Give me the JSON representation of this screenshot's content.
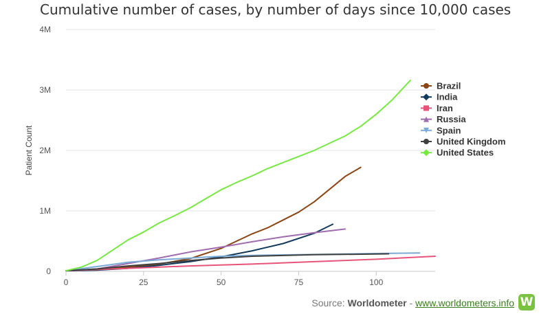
{
  "chart_data": {
    "type": "line",
    "title": "Cumulative number of cases, by number of days since 10,000 cases",
    "xlabel": "",
    "ylabel": "Patient Count",
    "xlim": [
      0,
      119
    ],
    "ylim": [
      0,
      4000000
    ],
    "x_ticks": [
      0,
      25,
      50,
      75,
      100
    ],
    "y_ticks": [
      0,
      1000000,
      2000000,
      3000000,
      4000000
    ],
    "x_tick_labels": [
      "0",
      "25",
      "50",
      "75",
      "100"
    ],
    "y_tick_labels": [
      "0",
      "1M",
      "2M",
      "3M",
      "4M"
    ],
    "grid": "horizontal",
    "legend": "right",
    "series": [
      {
        "name": "Brazil",
        "color": "#8b4513",
        "marker": "circle",
        "x": [
          0,
          10,
          20,
          30,
          40,
          50,
          55,
          60,
          65,
          70,
          75,
          80,
          85,
          90,
          95
        ],
        "y": [
          10000,
          30000,
          70000,
          120000,
          210000,
          380000,
          500000,
          620000,
          720000,
          850000,
          980000,
          1150000,
          1360000,
          1570000,
          1720000
        ]
      },
      {
        "name": "India",
        "color": "#123a5a",
        "marker": "diamond",
        "x": [
          0,
          10,
          20,
          30,
          40,
          50,
          60,
          70,
          80,
          86
        ],
        "y": [
          10000,
          20000,
          50000,
          100000,
          160000,
          240000,
          340000,
          460000,
          630000,
          780000
        ]
      },
      {
        "name": "Iran",
        "color": "#e8537a",
        "marker": "square",
        "x": [
          0,
          20,
          40,
          60,
          80,
          100,
          119
        ],
        "y": [
          10000,
          50000,
          90000,
          120000,
          160000,
          200000,
          250000
        ]
      },
      {
        "name": "Russia",
        "color": "#a06bb0",
        "marker": "triangle",
        "x": [
          0,
          10,
          20,
          30,
          40,
          50,
          60,
          70,
          80,
          90
        ],
        "y": [
          10000,
          40000,
          130000,
          220000,
          320000,
          400000,
          490000,
          570000,
          640000,
          700000
        ]
      },
      {
        "name": "Spain",
        "color": "#7aaad6",
        "marker": "triangle-down",
        "x": [
          0,
          10,
          20,
          30,
          40,
          50,
          60,
          80,
          100,
          114
        ],
        "y": [
          10000,
          80000,
          150000,
          190000,
          220000,
          250000,
          265000,
          280000,
          295000,
          305000
        ]
      },
      {
        "name": "United Kingdom",
        "color": "#404040",
        "marker": "circle",
        "x": [
          0,
          10,
          20,
          30,
          40,
          50,
          60,
          80,
          104
        ],
        "y": [
          10000,
          40000,
          90000,
          130000,
          180000,
          220000,
          250000,
          275000,
          290000
        ]
      },
      {
        "name": "United States",
        "color": "#77e842",
        "marker": "diamond",
        "x": [
          0,
          5,
          10,
          15,
          20,
          25,
          30,
          35,
          40,
          45,
          50,
          55,
          60,
          65,
          70,
          75,
          80,
          85,
          90,
          95,
          100,
          105,
          111
        ],
        "y": [
          10000,
          70000,
          180000,
          350000,
          520000,
          650000,
          800000,
          920000,
          1050000,
          1200000,
          1350000,
          1470000,
          1580000,
          1700000,
          1800000,
          1900000,
          2000000,
          2120000,
          2240000,
          2400000,
          2600000,
          2830000,
          3160000
        ]
      }
    ]
  },
  "footer": {
    "source_prefix": "Source: ",
    "source_name": "Worldometer",
    "separator": " - ",
    "source_url": "www.worldometers.info",
    "logo_letter": "W"
  }
}
